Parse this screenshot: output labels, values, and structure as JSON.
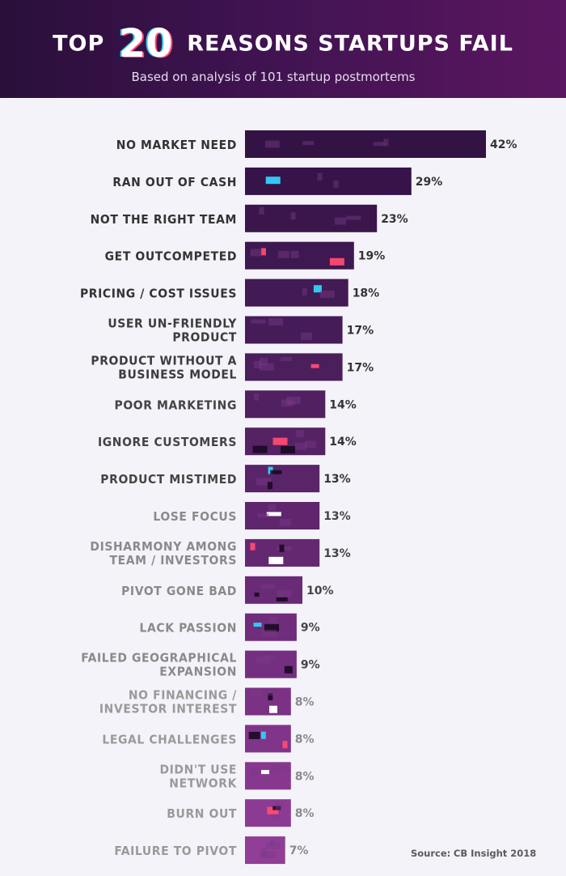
{
  "header": {
    "title_pre": "TOP",
    "title_num": "20",
    "title_post": "REASONS STARTUPS FAIL",
    "subtitle": "Based on analysis of 101 startup postmortems"
  },
  "source": {
    "prefix": "Source:",
    "name": "CB Insight 2018"
  },
  "chart_data": {
    "type": "bar",
    "orientation": "horizontal",
    "title": "TOP 20 REASONS STARTUPS FAIL",
    "subtitle": "Based on analysis of 101 startup postmortems",
    "xlabel": "",
    "ylabel": "",
    "value_suffix": "%",
    "categories": [
      [
        "NO MARKET NEED"
      ],
      [
        "RAN OUT OF CASH"
      ],
      [
        "NOT THE RIGHT TEAM"
      ],
      [
        "GET OUTCOMPETED"
      ],
      [
        "PRICING / COST ISSUES"
      ],
      [
        "USER UN-FRIENDLY",
        "PRODUCT"
      ],
      [
        "PRODUCT WITHOUT A",
        "BUSINESS MODEL"
      ],
      [
        "POOR MARKETING"
      ],
      [
        "IGNORE CUSTOMERS"
      ],
      [
        "PRODUCT MISTIMED"
      ],
      [
        "LOSE FOCUS"
      ],
      [
        "DISHARMONY AMONG",
        "TEAM / INVESTORS"
      ],
      [
        "PIVOT GONE BAD"
      ],
      [
        "LACK PASSION"
      ],
      [
        "FAILED GEOGRAPHICAL",
        "EXPANSION"
      ],
      [
        "NO FINANCING /",
        "INVESTOR INTEREST"
      ],
      [
        "LEGAL CHALLENGES"
      ],
      [
        "DIDN'T USE",
        "NETWORK"
      ],
      [
        "BURN OUT"
      ],
      [
        "FAILURE TO PIVOT"
      ]
    ],
    "values": [
      42,
      29,
      23,
      19,
      18,
      17,
      17,
      14,
      14,
      13,
      13,
      13,
      10,
      9,
      9,
      8,
      8,
      8,
      8,
      7
    ],
    "bar_colors": [
      "#321343",
      "#36144a",
      "#3a164d",
      "#3e1850",
      "#421a54",
      "#461c58",
      "#4b1e5c",
      "#502060",
      "#552264",
      "#5a2468",
      "#5f266d",
      "#642871",
      "#692a76",
      "#6f2d7b",
      "#752f80",
      "#7b3285",
      "#81358a",
      "#87388e",
      "#8c3b92",
      "#913e96"
    ],
    "label_colors": [
      "#333333",
      "#333333",
      "#333333",
      "#333333",
      "#333333",
      "#3c3c3c",
      "#3c3c3c",
      "#444444",
      "#444444",
      "#444444",
      "#8a8a8a",
      "#8a8a8a",
      "#8a8a8a",
      "#8a8a8a",
      "#8a8a8a",
      "#9a9a9a",
      "#9a9a9a",
      "#9a9a9a",
      "#9a9a9a",
      "#9a9a9a"
    ],
    "value_colors": [
      "#333333",
      "#333333",
      "#333333",
      "#333333",
      "#333333",
      "#333333",
      "#333333",
      "#333333",
      "#333333",
      "#333333",
      "#444444",
      "#444444",
      "#444444",
      "#444444",
      "#444444",
      "#8a8a8a",
      "#8a8a8a",
      "#8a8a8a",
      "#8a8a8a",
      "#8a8a8a"
    ],
    "glitch_colors": [
      "#ffffff",
      "#33c8f0",
      "#ff4a72",
      "#1a0a22",
      "#ffffff",
      "#7a3a8a"
    ],
    "xlim": [
      0,
      42
    ],
    "grid": false,
    "legend": "none"
  }
}
